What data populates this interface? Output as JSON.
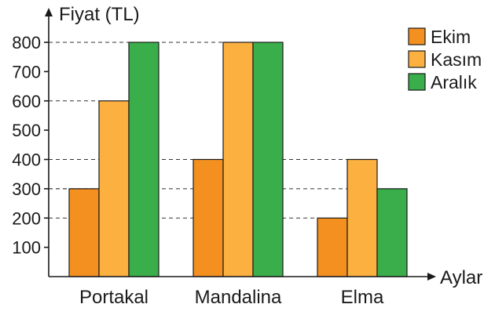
{
  "chart_data": {
    "type": "bar",
    "ylabel": "Fiyat (TL)",
    "xlabel": "Aylar",
    "categories": [
      "Portakal",
      "Mandalina",
      "Elma"
    ],
    "series": [
      {
        "name": "Ekim",
        "color": "#f39020",
        "values": [
          300,
          400,
          200
        ]
      },
      {
        "name": "Kasım",
        "color": "#fbb040",
        "values": [
          600,
          800,
          400
        ]
      },
      {
        "name": "Aralık",
        "color": "#3aae4a",
        "values": [
          800,
          800,
          300
        ]
      }
    ],
    "yticks": [
      "100",
      "200",
      "300",
      "400",
      "500",
      "600",
      "700",
      "800"
    ],
    "ylim": [
      0,
      800
    ],
    "grid": "dashed guide lines at bar tops",
    "legend_position": "top-right"
  }
}
